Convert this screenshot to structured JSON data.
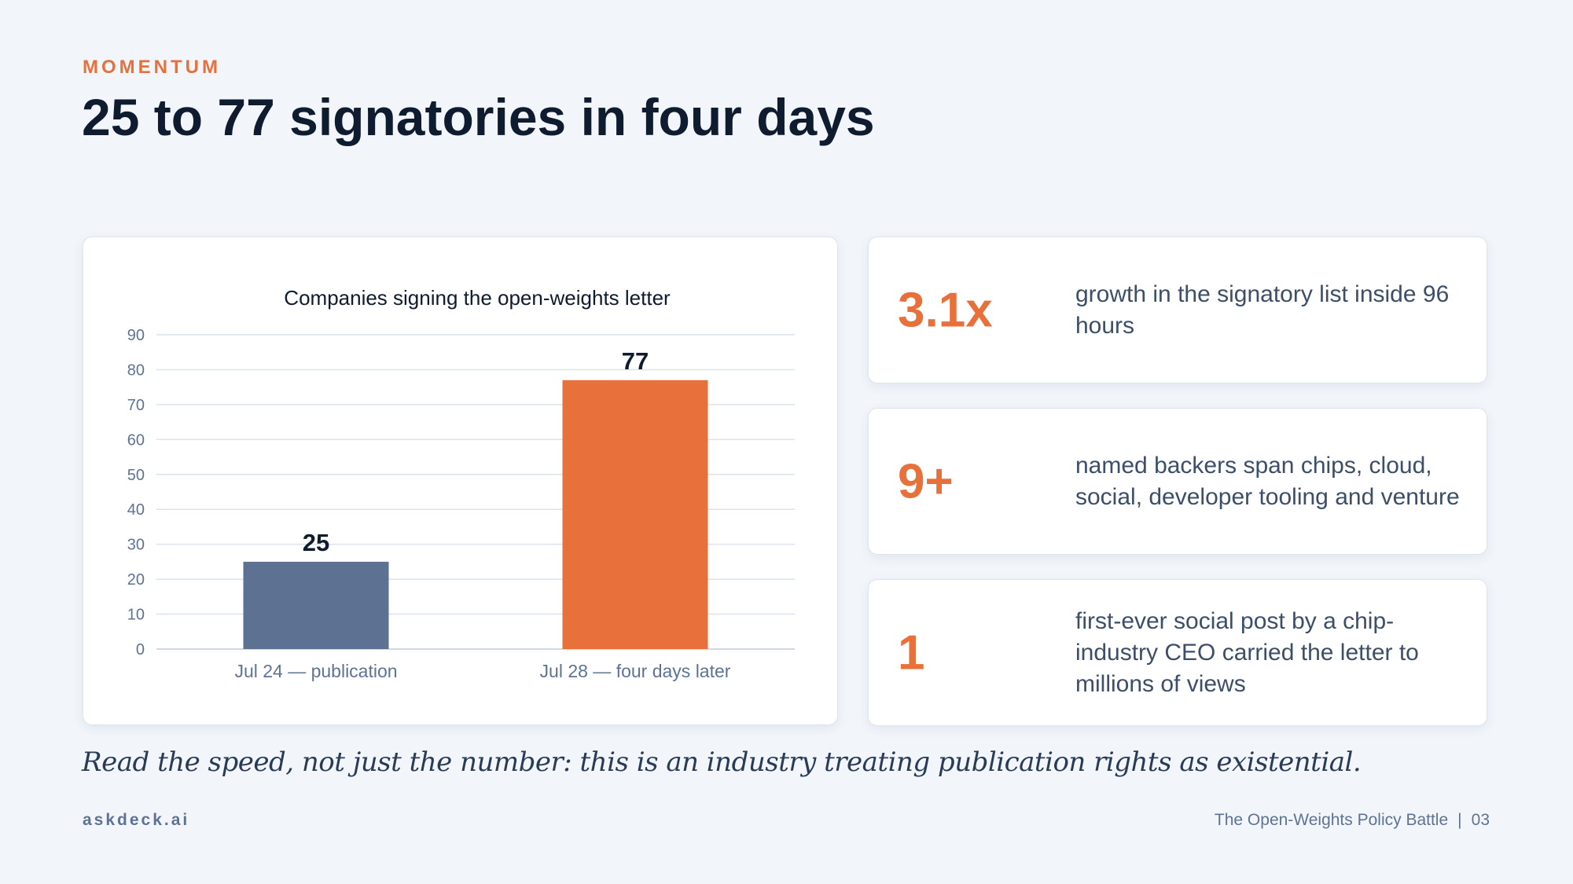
{
  "eyebrow": "MOMENTUM",
  "title": "25 to 77 signatories in four days",
  "chart_data": {
    "type": "bar",
    "title": "Companies signing the open-weights letter",
    "categories": [
      "Jul 24 — publication",
      "Jul 28 — four days later"
    ],
    "values": [
      25,
      77
    ],
    "colors": [
      "#5d7293",
      "#e8703a"
    ],
    "xlabel": "",
    "ylabel": "",
    "ylim": [
      0,
      90
    ],
    "yticks": [
      0,
      10,
      20,
      30,
      40,
      50,
      60,
      70,
      80,
      90
    ],
    "grid": true,
    "legend": "none"
  },
  "stats": [
    {
      "value": "3.1x",
      "description": "growth in the signatory list inside 96 hours"
    },
    {
      "value": "9+",
      "description": "named backers span chips, cloud, social, developer tooling and venture"
    },
    {
      "value": "1",
      "description": "first-ever social post by a chip-industry CEO carried the letter to millions of views"
    }
  ],
  "quote": "Read the speed, not just the number: this is an industry treating publication rights as existential.",
  "footer": {
    "brand": "askdeck.ai",
    "deck_title": "The Open-Weights Policy Battle",
    "separator": "|",
    "page_number": "03"
  },
  "colors": {
    "accent": "#e8703a",
    "title": "#0f1b2e",
    "muted": "#5e7394",
    "background": "#f2f6fb"
  }
}
